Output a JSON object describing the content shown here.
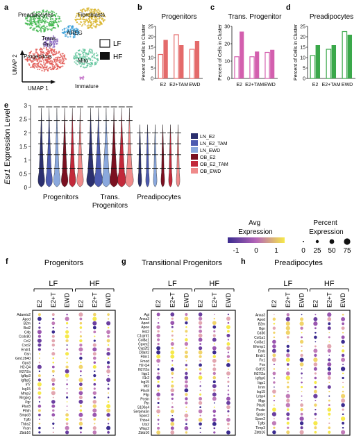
{
  "panels": {
    "a": "a",
    "b": "b",
    "c": "c",
    "d": "d",
    "e": "e",
    "f": "f",
    "g": "g",
    "h": "h"
  },
  "umap": {
    "xlabel": "UMAP 1",
    "ylabel": "UMAP 2",
    "clusters": [
      {
        "label": "Preadipocytes",
        "color": "#3cb54a"
      },
      {
        "label": "Fibroblasts",
        "color": "#d8b327"
      },
      {
        "label": "AREG",
        "color": "#3a9fd8"
      },
      {
        "label": "Trans.\nPro",
        "color": "#8e6bc4"
      },
      {
        "label": "Progenitors",
        "color": "#e0504b"
      },
      {
        "label": "Mito",
        "color": "#5ec39a"
      },
      {
        "label": "Immature",
        "color": "#c06bc5"
      }
    ],
    "legend": [
      {
        "label": "LF",
        "fill": "open"
      },
      {
        "label": "HF",
        "fill": "filled"
      }
    ]
  },
  "chart_data": [
    {
      "type": "bar",
      "panel": "b",
      "title": "Progenitors",
      "ylabel": "Percent of Cells in Cluster",
      "ylim": [
        0,
        25
      ],
      "yticks": [
        0,
        5,
        10,
        15,
        20,
        25
      ],
      "categories": [
        "E2",
        "E2+TAM",
        "EWD"
      ],
      "color": "#e46a6a",
      "series": [
        {
          "name": "LF",
          "values": [
            11.5,
            21,
            14
          ]
        },
        {
          "name": "HF",
          "values": [
            18.5,
            16,
            18
          ]
        }
      ]
    },
    {
      "type": "bar",
      "panel": "c",
      "title": "Trans. Progenitor",
      "ylabel": "Percent of Cells in Cluster",
      "ylim": [
        0,
        30
      ],
      "yticks": [
        0,
        10,
        20,
        30
      ],
      "categories": [
        "E2",
        "E2+TAM",
        "EWD"
      ],
      "color": "#d35fae",
      "series": [
        {
          "name": "LF",
          "values": [
            12.5,
            12.5,
            15
          ]
        },
        {
          "name": "HF",
          "values": [
            27,
            15.5,
            16.5
          ]
        }
      ]
    },
    {
      "type": "bar",
      "panel": "d",
      "title": "Preadipocytes",
      "ylabel": "Percent of Cells in Cluster",
      "ylim": [
        0,
        25
      ],
      "yticks": [
        0,
        5,
        10,
        15,
        20,
        25
      ],
      "categories": [
        "E2",
        "E2+TAM",
        "EWD"
      ],
      "color": "#3aa84a",
      "series": [
        {
          "name": "LF",
          "values": [
            11,
            14,
            22.5
          ]
        },
        {
          "name": "HF",
          "values": [
            16,
            16,
            21
          ]
        }
      ]
    },
    {
      "type": "violin",
      "panel": "e",
      "ylabel": "Esr1 Expression Level",
      "ylim": [
        0,
        3
      ],
      "yticks": [
        0,
        0.5,
        1,
        1.5,
        2,
        2.5,
        3
      ],
      "categories": [
        "Progenitors",
        "Trans.\nProgenitors",
        "Preadipocytes"
      ],
      "series": [
        {
          "name": "LN_E2",
          "color": "#2b2f6e"
        },
        {
          "name": "LN_E2_TAM",
          "color": "#4d5bb0"
        },
        {
          "name": "LN_EWD",
          "color": "#8aa8dd"
        },
        {
          "name": "OB_E2",
          "color": "#7a1020"
        },
        {
          "name": "OB_E2_TAM",
          "color": "#c2283a"
        },
        {
          "name": "OB_EWD",
          "color": "#ef8a8a"
        }
      ]
    },
    {
      "type": "dotplot",
      "panel": "f",
      "title": "Progenitors",
      "genes": [
        "Adamts2",
        "Apod",
        "B2m",
        "Bst2",
        "C4b",
        "Ccdc80",
        "Ccl2",
        "Cxcl2",
        "Endr1",
        "Gsn",
        "Gm12840",
        "Gpx3",
        "H2-Q4",
        "Ifi27l2a",
        "Igfbp3",
        "Igfbp5",
        "Irf7",
        "Isg15",
        "Mmp3",
        "Mrgprg",
        "Pgr",
        "Plac8",
        "Pthlh",
        "Smpd3",
        "Tgfb",
        "Thbs2",
        "Vcan",
        "Zbtb16"
      ]
    },
    {
      "type": "dotplot",
      "panel": "g",
      "title": "Transitional Progenitors",
      "genes": [
        "Agt",
        "Anxa3",
        "Apod",
        "Apoe",
        "Bst2",
        "C1qtnf1",
        "Col8a1",
        "Cpxm2",
        "Cyp2f2",
        "Ddah2",
        "Fbln1",
        "Fmod",
        "H2-Q4",
        "Ifi27l2a",
        "Iigp1",
        "Il1r2",
        "Isg15",
        "Mt2",
        "Plac8",
        "Pltp",
        "Postn",
        "Ptn",
        "S100a4",
        "Serpina3n",
        "Spon2",
        "Thbs4",
        "Uts2",
        "Wisp2",
        "Zbtb16"
      ]
    },
    {
      "type": "dotplot",
      "panel": "h",
      "title": "Preadipocytes",
      "genes": [
        "Anxa3",
        "Apod",
        "B2m",
        "Bgn",
        "Cd36",
        "Col1a1",
        "Col3a1",
        "Efemp1",
        "Emb",
        "Endr1",
        "Fn1",
        "Fos",
        "Gdf15",
        "Ifi27l2a",
        "Igfbp6",
        "Iigp1",
        "Irnm",
        "Isg15",
        "Lrbp4",
        "Mgp",
        "Plac8",
        "Postn",
        "Sparc",
        "Spon2",
        "Tgfbi",
        "Timp3",
        "Zbtb16"
      ]
    }
  ],
  "dotplot_columns": [
    "E2",
    "E2+T",
    "EWD",
    "E2",
    "E2+T",
    "EWD"
  ],
  "dotplot_groups": [
    "LF",
    "HF"
  ],
  "avg_expression": {
    "title": "Avg\nExpression",
    "ticks": [
      "-1",
      "0",
      "1"
    ],
    "colors": [
      "#3b2b8f",
      "#b565b8",
      "#f6e94a"
    ]
  },
  "percent_expression": {
    "title": "Percent\nExpression",
    "ticks": [
      "0",
      "25",
      "50",
      "75"
    ]
  }
}
